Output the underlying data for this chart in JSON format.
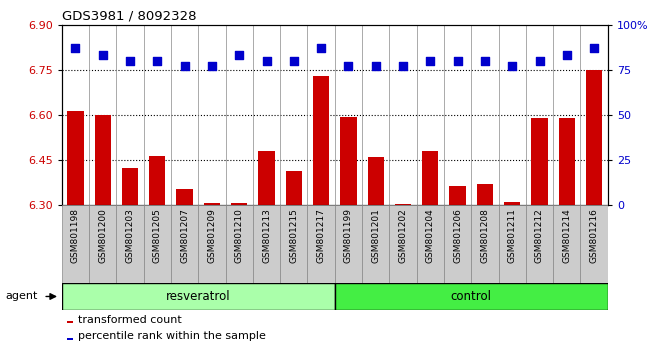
{
  "title": "GDS3981 / 8092328",
  "categories": [
    "GSM801198",
    "GSM801200",
    "GSM801203",
    "GSM801205",
    "GSM801207",
    "GSM801209",
    "GSM801210",
    "GSM801213",
    "GSM801215",
    "GSM801217",
    "GSM801199",
    "GSM801201",
    "GSM801202",
    "GSM801204",
    "GSM801206",
    "GSM801208",
    "GSM801211",
    "GSM801212",
    "GSM801214",
    "GSM801216"
  ],
  "bar_values": [
    6.615,
    6.6,
    6.425,
    6.465,
    6.355,
    6.308,
    6.308,
    6.48,
    6.415,
    6.73,
    6.595,
    6.46,
    6.305,
    6.48,
    6.365,
    6.37,
    6.31,
    6.59,
    6.59,
    6.75
  ],
  "percentile_values": [
    87,
    83,
    80,
    80,
    77,
    77,
    83,
    80,
    80,
    87,
    77,
    77,
    77,
    80,
    80,
    80,
    77,
    80,
    83,
    87
  ],
  "bar_color": "#cc0000",
  "dot_color": "#0000cc",
  "ylim_left": [
    6.3,
    6.9
  ],
  "ylim_right": [
    0,
    100
  ],
  "yticks_left": [
    6.3,
    6.45,
    6.6,
    6.75,
    6.9
  ],
  "yticks_right": [
    0,
    25,
    50,
    75,
    100
  ],
  "ytick_labels_right": [
    "0",
    "25",
    "50",
    "75",
    "100%"
  ],
  "grid_lines": [
    6.45,
    6.6,
    6.75
  ],
  "resveratrol_label": "resveratrol",
  "control_label": "control",
  "agent_label": "agent",
  "legend_bar_label": "transformed count",
  "legend_dot_label": "percentile rank within the sample",
  "n_resveratrol": 10,
  "n_control": 10,
  "bar_width": 0.6,
  "resveratrol_bg": "#aaffaa",
  "control_bg": "#44ee44",
  "dot_size": 35,
  "dot_marker": "s",
  "xticklabel_bg": "#cccccc",
  "xticklabel_border": "#888888"
}
